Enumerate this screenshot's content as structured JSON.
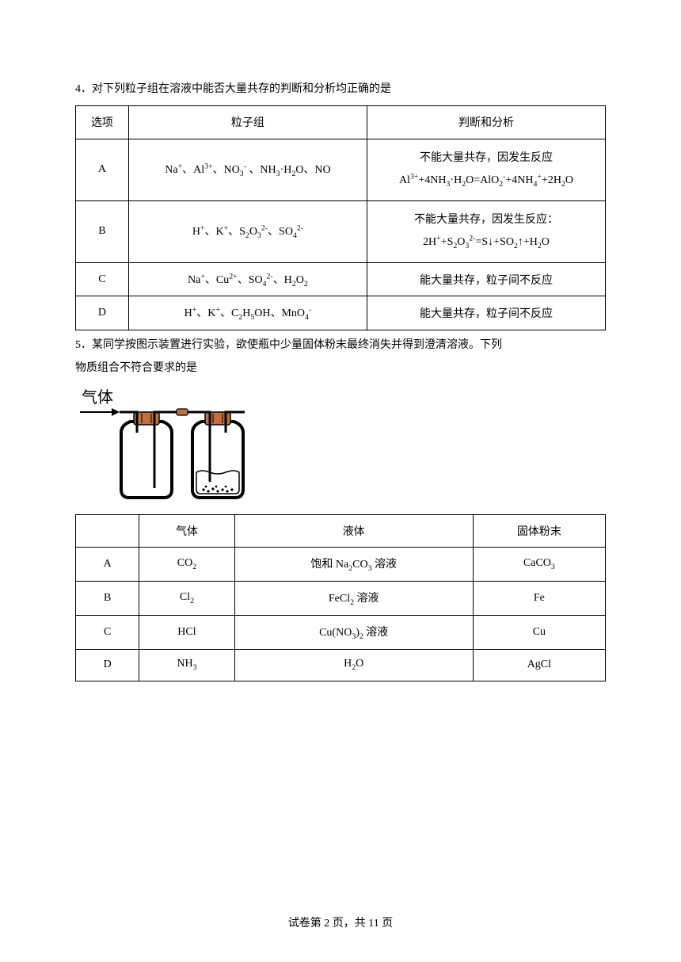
{
  "q4": {
    "prompt": "4．对下列粒子组在溶液中能否大量共存的判断和分析均正确的是",
    "headers": {
      "option": "选项",
      "group": "粒子组",
      "analysis": "判断和分析"
    },
    "rows": [
      {
        "opt": "A",
        "group_html": "Na<sup>+</sup>、Al<sup>3+</sup>、NO<sub>3</sub><sup>-</sup> 、NH<sub>3</sub>·H<sub>2</sub>O、NO",
        "analysis_line1": "不能大量共存，因发生反应",
        "analysis_line2_html": "Al<sup>3+</sup>+4NH<sub>3</sub>·H<sub>2</sub>O=AlO<sub>2</sub><sup>-</sup>+4NH<sub>4</sub><sup>+</sup>+2H<sub>2</sub>O"
      },
      {
        "opt": "B",
        "group_html": "H<sup>+</sup>、K<sup>+</sup>、S<sub>2</sub>O<sub>3</sub><sup>2-</sup>、SO<sub>4</sub><sup>2-</sup>",
        "analysis_line1": "不能大量共存，因发生反应：",
        "analysis_line2_html": "2H<sup>+</sup>+S<sub>2</sub>O<sub>3</sub><sup>2-</sup>=S↓+SO<sub>2</sub>↑+H<sub>2</sub>O"
      },
      {
        "opt": "C",
        "group_html": "Na<sup>+</sup>、Cu<sup>2+</sup>、SO<sub>4</sub><sup>2-</sup>、H<sub>2</sub>O<sub>2</sub>",
        "analysis_single": "能大量共存，粒子间不反应"
      },
      {
        "opt": "D",
        "group_html": "H<sup>+</sup>、K<sup>+</sup>、C<sub>2</sub>H<sub>5</sub>OH、MnO<sub>4</sub><sup>-</sup>",
        "analysis_single": "能大量共存，粒子间不反应"
      }
    ]
  },
  "q5": {
    "prompt_line1": "5．某同学按图示装置进行实验，欲使瓶中少量固体粉末最终消失并得到澄清溶液。下列",
    "prompt_line2": "物质组合不符合要求的是",
    "gas_label": "气体",
    "headers": {
      "blank": "",
      "gas": "气体",
      "liquid": "液体",
      "solid": "固体粉末"
    },
    "rows": [
      {
        "opt": "A",
        "gas_html": "CO<sub>2</sub>",
        "liquid_html": "饱和 Na<sub>2</sub>CO<sub>3</sub> 溶液",
        "solid_html": "CaCO<sub>3</sub>"
      },
      {
        "opt": "B",
        "gas_html": "Cl<sub>2</sub>",
        "liquid_html": "FeCl<sub>2</sub> 溶液",
        "solid_html": "Fe"
      },
      {
        "opt": "C",
        "gas_html": "HCl",
        "liquid_html": "Cu(NO<sub>3</sub>)<sub>2</sub> 溶液",
        "solid_html": "Cu"
      },
      {
        "opt": "D",
        "gas_html": "NH<sub>3</sub>",
        "liquid_html": "H<sub>2</sub>O",
        "solid_html": "AgCl"
      }
    ]
  },
  "footer": {
    "left": "试卷第 2 页，共 11 页"
  },
  "diagram": {
    "stroke": "#000000",
    "fill_black": "#000000",
    "fill_white": "#ffffff",
    "fill_stopper": "#c07040"
  }
}
